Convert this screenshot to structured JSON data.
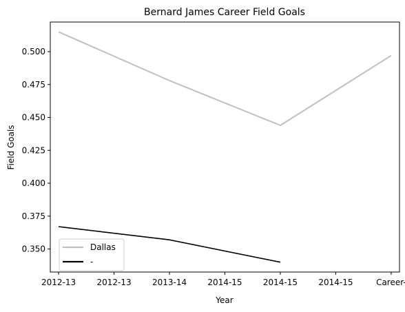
{
  "chart_data": {
    "type": "line",
    "title": "Bernard James Career Field Goals",
    "xlabel": "Year",
    "ylabel": "Field Goals",
    "x_tick_labels": [
      "2012-13",
      "2012-13",
      "2013-14",
      "2014-15",
      "2014-15",
      "2014-15",
      "Career-"
    ],
    "y_ticks": [
      0.35,
      0.375,
      0.4,
      0.425,
      0.45,
      0.475,
      0.5
    ],
    "y_tick_labels": [
      "0.350",
      "0.375",
      "0.400",
      "0.425",
      "0.450",
      "0.475",
      "0.500"
    ],
    "ylim": [
      0.3325,
      0.5225
    ],
    "grid": false,
    "legend_position": "lower-left",
    "series": [
      {
        "name": "Dallas",
        "color": "#bfbfbf",
        "points": [
          [
            0,
            0.515
          ],
          [
            2,
            0.478
          ],
          [
            4,
            0.444
          ],
          [
            6,
            0.497
          ]
        ]
      },
      {
        "name": "-",
        "color": "#000000",
        "points": [
          [
            0,
            0.367
          ],
          [
            2,
            0.357
          ],
          [
            4,
            0.34
          ]
        ]
      }
    ]
  }
}
